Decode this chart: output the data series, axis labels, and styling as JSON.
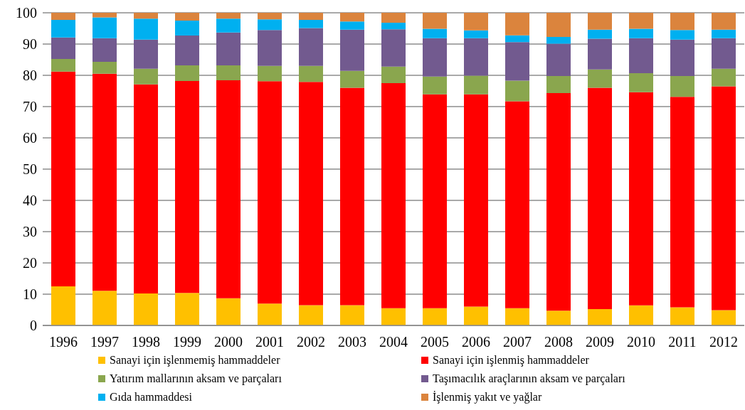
{
  "chart_data": {
    "type": "bar",
    "stacked": true,
    "categories": [
      "1996",
      "1997",
      "1998",
      "1999",
      "2000",
      "2001",
      "2002",
      "2003",
      "2004",
      "2005",
      "2006",
      "2007",
      "2008",
      "2009",
      "2010",
      "2011",
      "2012"
    ],
    "series": [
      {
        "name": "Sanayi için işlenmemiş hammaddeler",
        "color": "#ffc000",
        "values": [
          12.5,
          11.1,
          10.2,
          10.4,
          8.7,
          7.0,
          6.5,
          6.5,
          5.5,
          5.5,
          6.0,
          5.5,
          4.7,
          5.2,
          6.4,
          5.8,
          4.9
        ]
      },
      {
        "name": "Sanayi için işlenmiş hammaddeler",
        "color": "#ff0000",
        "values": [
          68.7,
          69.4,
          66.9,
          67.8,
          69.7,
          71.1,
          71.4,
          69.5,
          72.0,
          68.4,
          67.9,
          66.2,
          69.6,
          70.8,
          68.2,
          67.3,
          71.6
        ]
      },
      {
        "name": "Yatırım mallarının aksam ve parçaları",
        "color": "#8aa64e",
        "values": [
          4.0,
          3.8,
          5.0,
          5.0,
          4.8,
          4.9,
          5.1,
          5.4,
          5.3,
          5.7,
          6.0,
          6.6,
          5.5,
          5.9,
          6.1,
          6.7,
          5.6
        ]
      },
      {
        "name": "Taşımacılık araçlarının aksam ve parçaları",
        "color": "#725a8f",
        "values": [
          6.9,
          7.6,
          9.3,
          9.5,
          10.5,
          11.5,
          12.1,
          13.2,
          11.9,
          12.3,
          12.0,
          12.3,
          10.3,
          9.8,
          11.2,
          11.6,
          9.8
        ]
      },
      {
        "name": "Gıda hammaddesi",
        "color": "#00b0f0",
        "values": [
          5.6,
          6.6,
          6.7,
          4.8,
          4.4,
          3.4,
          2.6,
          2.6,
          2.1,
          3.0,
          2.5,
          2.2,
          2.2,
          2.9,
          3.0,
          3.1,
          2.7
        ]
      },
      {
        "name": "İşlenmiş yakıt ve yağlar",
        "color": "#db843d",
        "values": [
          2.3,
          1.5,
          1.9,
          2.5,
          1.9,
          2.1,
          2.3,
          2.8,
          3.2,
          5.1,
          5.6,
          7.2,
          7.7,
          5.4,
          5.1,
          5.5,
          5.4
        ]
      }
    ],
    "ylim": [
      0,
      100
    ],
    "yticks": [
      0,
      10,
      20,
      30,
      40,
      50,
      60,
      70,
      80,
      90,
      100
    ],
    "grid": "y",
    "legend": "bottom"
  }
}
